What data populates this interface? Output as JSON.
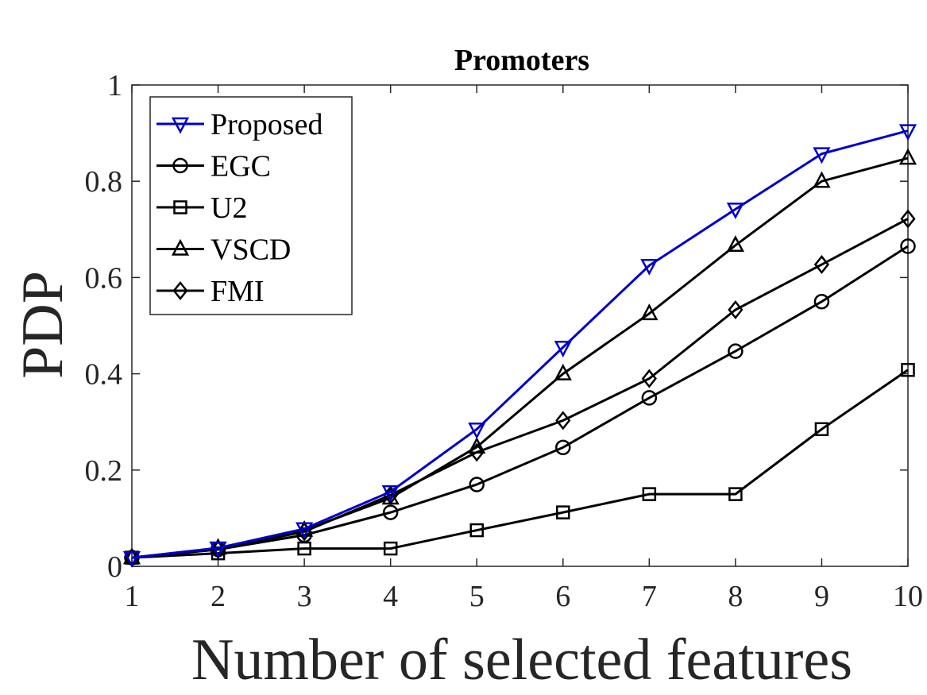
{
  "chart_data": {
    "type": "line",
    "title": "Promoters",
    "xlabel": "Number of selected features",
    "ylabel": "PDP",
    "xlim": [
      1,
      10
    ],
    "ylim": [
      0,
      1
    ],
    "xticks": [
      1,
      2,
      3,
      4,
      5,
      6,
      7,
      8,
      9,
      10
    ],
    "yticks": [
      0,
      0.2,
      0.4,
      0.6,
      0.8,
      1
    ],
    "ytick_labels": [
      "0",
      "0.2",
      "0.4",
      "0.6",
      "0.8",
      "1"
    ],
    "grid": false,
    "legend_position": "top-left",
    "x": [
      1,
      2,
      3,
      4,
      5,
      6,
      7,
      8,
      9,
      10
    ],
    "series": [
      {
        "name": "Proposed",
        "marker": "triangle-down",
        "color": "#0000cc",
        "values": [
          0.018,
          0.038,
          0.078,
          0.155,
          0.285,
          0.455,
          0.625,
          0.742,
          0.857,
          0.905
        ]
      },
      {
        "name": "EGC",
        "marker": "circle",
        "color": "#000000",
        "values": [
          0.018,
          0.035,
          0.065,
          0.112,
          0.17,
          0.247,
          0.35,
          0.447,
          0.55,
          0.665
        ]
      },
      {
        "name": "U2",
        "marker": "square",
        "color": "#000000",
        "values": [
          0.018,
          0.027,
          0.037,
          0.037,
          0.075,
          0.112,
          0.15,
          0.15,
          0.285,
          0.408
        ]
      },
      {
        "name": "VSCD",
        "marker": "triangle-up",
        "color": "#000000",
        "values": [
          0.018,
          0.038,
          0.075,
          0.142,
          0.248,
          0.4,
          0.525,
          0.667,
          0.8,
          0.848
        ]
      },
      {
        "name": "FMI",
        "marker": "diamond",
        "color": "#000000",
        "values": [
          0.018,
          0.035,
          0.072,
          0.148,
          0.237,
          0.303,
          0.39,
          0.533,
          0.627,
          0.722
        ]
      }
    ]
  }
}
